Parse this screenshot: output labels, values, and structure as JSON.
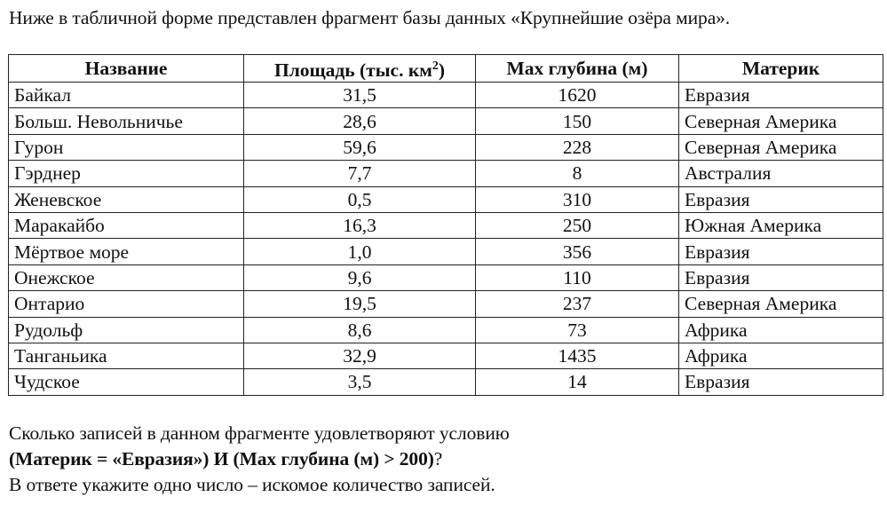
{
  "intro_text": "Ниже в табличной форме представлен фрагмент базы данных «Крупнейшие озёра мира».",
  "table": {
    "headers": {
      "name": "Название",
      "area": "Площадь (тыс. км",
      "area_sup": "2",
      "area_close": ")",
      "depth": "Max глубина (м)",
      "continent": "Материк"
    },
    "rows": [
      {
        "name": "Байкал",
        "area": "31,5",
        "depth": "1620",
        "continent": "Евразия"
      },
      {
        "name": "Больш. Невольничье",
        "area": "28,6",
        "depth": "150",
        "continent": "Северная Америка"
      },
      {
        "name": "Гурон",
        "area": "59,6",
        "depth": "228",
        "continent": "Северная Америка"
      },
      {
        "name": "Гэрднер",
        "area": "7,7",
        "depth": "8",
        "continent": "Австралия"
      },
      {
        "name": "Женевское",
        "area": "0,5",
        "depth": "310",
        "continent": "Евразия"
      },
      {
        "name": "Маракайбо",
        "area": "16,3",
        "depth": "250",
        "continent": "Южная Америка"
      },
      {
        "name": "Мёртвое море",
        "area": "1,0",
        "depth": "356",
        "continent": "Евразия"
      },
      {
        "name": "Онежское",
        "area": "9,6",
        "depth": "110",
        "continent": "Евразия"
      },
      {
        "name": "Онтарио",
        "area": "19,5",
        "depth": "237",
        "continent": "Северная Америка"
      },
      {
        "name": "Рудольф",
        "area": "8,6",
        "depth": "73",
        "continent": "Африка"
      },
      {
        "name": "Танганьика",
        "area": "32,9",
        "depth": "1435",
        "continent": "Африка"
      },
      {
        "name": "Чудское",
        "area": "3,5",
        "depth": "14",
        "continent": "Евразия"
      }
    ]
  },
  "question": {
    "line1": "Сколько записей в данном фрагменте удовлетворяют условию",
    "line2_bold": "(Материк = «Евразия») И (Max глубина (м) > 200)",
    "line2_tail": "?",
    "line3": "В ответе укажите одно число – искомое количество записей."
  }
}
